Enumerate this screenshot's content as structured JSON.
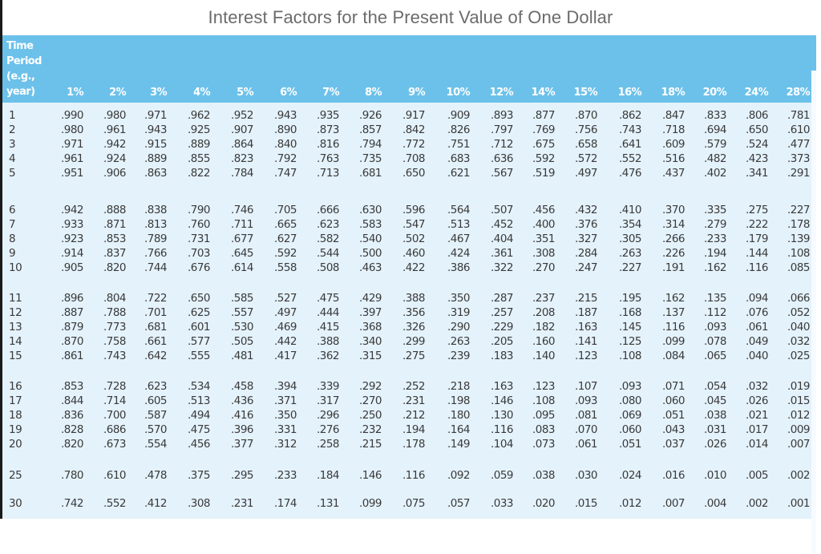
{
  "title": "Interest Factors for the Present Value of One Dollar",
  "colors": {
    "header_bg": "#6cc1ea",
    "body_bg": "#e4f2fb",
    "title_text": "#6b6b6b",
    "cell_text": "#3a3a3a"
  },
  "table": {
    "period_header": [
      "Time",
      "Period",
      "(e.g.,",
      "year)"
    ],
    "rates": [
      "1%",
      "2%",
      "3%",
      "4%",
      "5%",
      "6%",
      "7%",
      "8%",
      "9%",
      "10%",
      "12%",
      "14%",
      "15%",
      "16%",
      "18%",
      "20%",
      "24%",
      "28%"
    ],
    "rows": [
      {
        "period": "1",
        "values": [
          ".990",
          ".980",
          ".971",
          ".962",
          ".952",
          ".943",
          ".935",
          ".926",
          ".917",
          ".909",
          ".893",
          ".877",
          ".870",
          ".862",
          ".847",
          ".833",
          ".806",
          ".781"
        ]
      },
      {
        "period": "2",
        "values": [
          ".980",
          ".961",
          ".943",
          ".925",
          ".907",
          ".890",
          ".873",
          ".857",
          ".842",
          ".826",
          ".797",
          ".769",
          ".756",
          ".743",
          ".718",
          ".694",
          ".650",
          ".610"
        ]
      },
      {
        "period": "3",
        "values": [
          ".971",
          ".942",
          ".915",
          ".889",
          ".864",
          ".840",
          ".816",
          ".794",
          ".772",
          ".751",
          ".712",
          ".675",
          ".658",
          ".641",
          ".609",
          ".579",
          ".524",
          ".477"
        ]
      },
      {
        "period": "4",
        "values": [
          ".961",
          ".924",
          ".889",
          ".855",
          ".823",
          ".792",
          ".763",
          ".735",
          ".708",
          ".683",
          ".636",
          ".592",
          ".572",
          ".552",
          ".516",
          ".482",
          ".423",
          ".373"
        ]
      },
      {
        "period": "5",
        "values": [
          ".951",
          ".906",
          ".863",
          ".822",
          ".784",
          ".747",
          ".713",
          ".681",
          ".650",
          ".621",
          ".567",
          ".519",
          ".497",
          ".476",
          ".437",
          ".402",
          ".341",
          ".291"
        ]
      },
      {
        "period": "6",
        "values": [
          ".942",
          ".888",
          ".838",
          ".790",
          ".746",
          ".705",
          ".666",
          ".630",
          ".596",
          ".564",
          ".507",
          ".456",
          ".432",
          ".410",
          ".370",
          ".335",
          ".275",
          ".227"
        ]
      },
      {
        "period": "7",
        "values": [
          ".933",
          ".871",
          ".813",
          ".760",
          ".711",
          ".665",
          ".623",
          ".583",
          ".547",
          ".513",
          ".452",
          ".400",
          ".376",
          ".354",
          ".314",
          ".279",
          ".222",
          ".178"
        ]
      },
      {
        "period": "8",
        "values": [
          ".923",
          ".853",
          ".789",
          ".731",
          ".677",
          ".627",
          ".582",
          ".540",
          ".502",
          ".467",
          ".404",
          ".351",
          ".327",
          ".305",
          ".266",
          ".233",
          ".179",
          ".139"
        ]
      },
      {
        "period": "9",
        "values": [
          ".914",
          ".837",
          ".766",
          ".703",
          ".645",
          ".592",
          ".544",
          ".500",
          ".460",
          ".424",
          ".361",
          ".308",
          ".284",
          ".263",
          ".226",
          ".194",
          ".144",
          ".108"
        ]
      },
      {
        "period": "10",
        "values": [
          ".905",
          ".820",
          ".744",
          ".676",
          ".614",
          ".558",
          ".508",
          ".463",
          ".422",
          ".386",
          ".322",
          ".270",
          ".247",
          ".227",
          ".191",
          ".162",
          ".116",
          ".085"
        ]
      },
      {
        "period": "11",
        "values": [
          ".896",
          ".804",
          ".722",
          ".650",
          ".585",
          ".527",
          ".475",
          ".429",
          ".388",
          ".350",
          ".287",
          ".237",
          ".215",
          ".195",
          ".162",
          ".135",
          ".094",
          ".066"
        ]
      },
      {
        "period": "12",
        "values": [
          ".887",
          ".788",
          ".701",
          ".625",
          ".557",
          ".497",
          ".444",
          ".397",
          ".356",
          ".319",
          ".257",
          ".208",
          ".187",
          ".168",
          ".137",
          ".112",
          ".076",
          ".052"
        ]
      },
      {
        "period": "13",
        "values": [
          ".879",
          ".773",
          ".681",
          ".601",
          ".530",
          ".469",
          ".415",
          ".368",
          ".326",
          ".290",
          ".229",
          ".182",
          ".163",
          ".145",
          ".116",
          ".093",
          ".061",
          ".040"
        ]
      },
      {
        "period": "14",
        "values": [
          ".870",
          ".758",
          ".661",
          ".577",
          ".505",
          ".442",
          ".388",
          ".340",
          ".299",
          ".263",
          ".205",
          ".160",
          ".141",
          ".125",
          ".099",
          ".078",
          ".049",
          ".032"
        ]
      },
      {
        "period": "15",
        "values": [
          ".861",
          ".743",
          ".642",
          ".555",
          ".481",
          ".417",
          ".362",
          ".315",
          ".275",
          ".239",
          ".183",
          ".140",
          ".123",
          ".108",
          ".084",
          ".065",
          ".040",
          ".025"
        ]
      },
      {
        "period": "16",
        "values": [
          ".853",
          ".728",
          ".623",
          ".534",
          ".458",
          ".394",
          ".339",
          ".292",
          ".252",
          ".218",
          ".163",
          ".123",
          ".107",
          ".093",
          ".071",
          ".054",
          ".032",
          ".019"
        ]
      },
      {
        "period": "17",
        "values": [
          ".844",
          ".714",
          ".605",
          ".513",
          ".436",
          ".371",
          ".317",
          ".270",
          ".231",
          ".198",
          ".146",
          ".108",
          ".093",
          ".080",
          ".060",
          ".045",
          ".026",
          ".015"
        ]
      },
      {
        "period": "18",
        "values": [
          ".836",
          ".700",
          ".587",
          ".494",
          ".416",
          ".350",
          ".296",
          ".250",
          ".212",
          ".180",
          ".130",
          ".095",
          ".081",
          ".069",
          ".051",
          ".038",
          ".021",
          ".012"
        ]
      },
      {
        "period": "19",
        "values": [
          ".828",
          ".686",
          ".570",
          ".475",
          ".396",
          ".331",
          ".276",
          ".232",
          ".194",
          ".164",
          ".116",
          ".083",
          ".070",
          ".060",
          ".043",
          ".031",
          ".017",
          ".009"
        ]
      },
      {
        "period": "20",
        "values": [
          ".820",
          ".673",
          ".554",
          ".456",
          ".377",
          ".312",
          ".258",
          ".215",
          ".178",
          ".149",
          ".104",
          ".073",
          ".061",
          ".051",
          ".037",
          ".026",
          ".014",
          ".007"
        ]
      },
      {
        "period": "25",
        "values": [
          ".780",
          ".610",
          ".478",
          ".375",
          ".295",
          ".233",
          ".184",
          ".146",
          ".116",
          ".092",
          ".059",
          ".038",
          ".030",
          ".024",
          ".016",
          ".010",
          ".005",
          ".002"
        ]
      },
      {
        "period": "30",
        "values": [
          ".742",
          ".552",
          ".412",
          ".308",
          ".231",
          ".174",
          ".131",
          ".099",
          ".075",
          ".057",
          ".033",
          ".020",
          ".015",
          ".012",
          ".007",
          ".004",
          ".002",
          ".001"
        ]
      }
    ]
  }
}
